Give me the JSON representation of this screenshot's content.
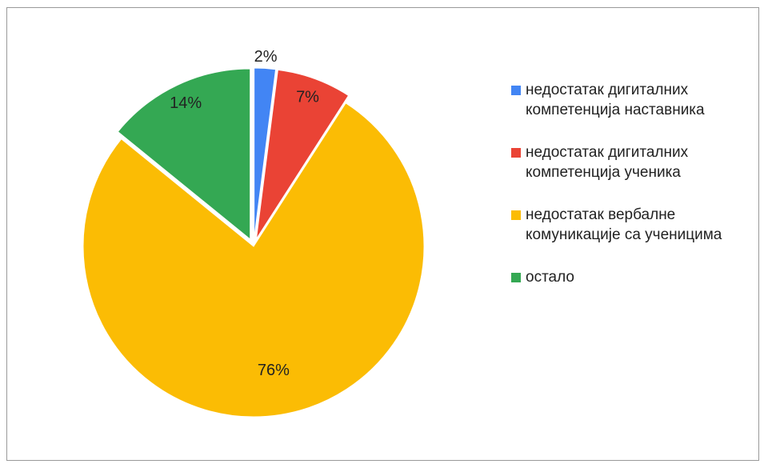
{
  "chart_data": {
    "type": "pie",
    "series": [
      {
        "name": "недостатак дигиталних компетенција наставника",
        "color": "#4285f4"
      },
      {
        "name": "недостатак дигиталних компетенција  ученика",
        "color": "#ea4335"
      },
      {
        "name": "недостатак вербалне комуникације са ученицима",
        "color": "#fbbc04"
      },
      {
        "name": "остало",
        "color": "#34a853"
      }
    ],
    "values": [
      2,
      7,
      76,
      14
    ],
    "value_labels": [
      "2%",
      "7%",
      "76%",
      "14%"
    ],
    "legend": "right"
  }
}
